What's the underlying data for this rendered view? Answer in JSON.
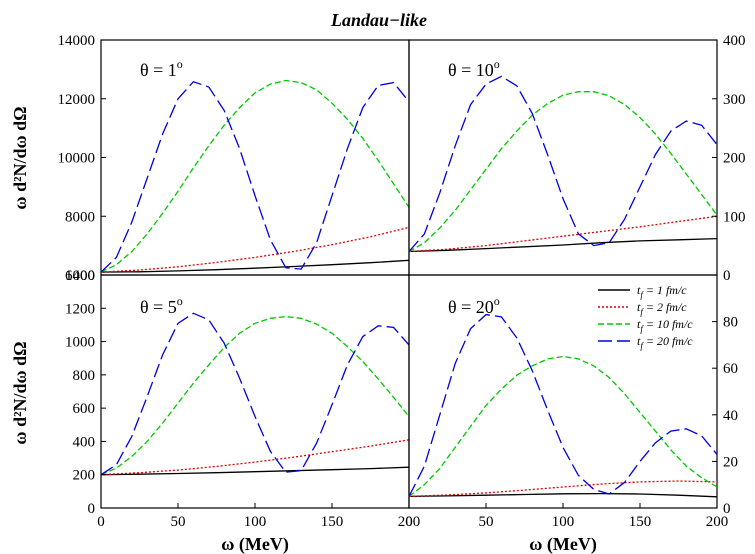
{
  "title": "Landau−like",
  "xlabel": "ω (MeV)",
  "ylabel": "ω d²N/dω dΩ",
  "legend": {
    "placement": "upper-right of bottom-right panel",
    "entries": [
      {
        "sub": "f",
        "text": "=   1 fm/c",
        "color": "#000000",
        "dash": "solid"
      },
      {
        "sub": "f",
        "text": "=   2 fm/c",
        "color": "#e00000",
        "dash": "dotted"
      },
      {
        "sub": "f",
        "text": "= 10 fm/c",
        "color": "#00c800",
        "dash": "dashed"
      },
      {
        "sub": "f",
        "text": "= 20 fm/c",
        "color": "#0000e0",
        "dash": "longdash"
      }
    ]
  },
  "chart_data": [
    {
      "type": "line",
      "panel": "top-left",
      "label_theta": "θ = 1",
      "label_sup": "o",
      "xlim": [
        0,
        200
      ],
      "ylim": [
        6000,
        14000
      ],
      "yticks": [
        6000,
        8000,
        10000,
        12000,
        14000
      ],
      "ytick_side": "left",
      "series": [
        {
          "name": "t_f = 1 fm/c",
          "x": [
            0,
            25,
            50,
            75,
            100,
            125,
            150,
            175,
            200
          ],
          "y": [
            6100,
            6110,
            6140,
            6180,
            6230,
            6290,
            6350,
            6420,
            6500
          ]
        },
        {
          "name": "t_f = 2 fm/c",
          "x": [
            0,
            25,
            50,
            75,
            100,
            125,
            150,
            175,
            200
          ],
          "y": [
            6100,
            6170,
            6280,
            6430,
            6600,
            6800,
            7030,
            7300,
            7620
          ]
        },
        {
          "name": "t_f = 10 fm/c",
          "x": [
            0,
            10,
            20,
            30,
            40,
            50,
            60,
            70,
            80,
            90,
            100,
            110,
            120,
            130,
            140,
            150,
            160,
            170,
            180,
            190,
            200
          ],
          "y": [
            6100,
            6350,
            6800,
            7400,
            8100,
            8850,
            9650,
            10400,
            11100,
            11700,
            12200,
            12500,
            12620,
            12550,
            12300,
            11850,
            11300,
            10650,
            9900,
            9100,
            8300
          ]
        },
        {
          "name": "t_f = 20 fm/c",
          "x": [
            0,
            10,
            20,
            30,
            40,
            50,
            60,
            70,
            80,
            90,
            100,
            110,
            120,
            130,
            140,
            150,
            160,
            170,
            180,
            190,
            200
          ],
          "y": [
            6100,
            6600,
            7800,
            9300,
            10800,
            12000,
            12580,
            12400,
            11600,
            10300,
            8700,
            7200,
            6250,
            6200,
            7100,
            8700,
            10300,
            11700,
            12450,
            12550,
            11900
          ]
        }
      ]
    },
    {
      "type": "line",
      "panel": "top-right",
      "label_theta": "θ = 10",
      "label_sup": "o",
      "xlim": [
        0,
        200
      ],
      "ylim": [
        0,
        400
      ],
      "yticks": [
        0,
        100,
        200,
        300,
        400
      ],
      "ytick_side": "right",
      "series": [
        {
          "name": "t_f = 1 fm/c",
          "x": [
            0,
            25,
            50,
            75,
            100,
            125,
            150,
            175,
            200
          ],
          "y": [
            40,
            42,
            45,
            48,
            51,
            55,
            58,
            60,
            62
          ]
        },
        {
          "name": "t_f = 2 fm/c",
          "x": [
            0,
            25,
            50,
            75,
            100,
            125,
            150,
            175,
            200
          ],
          "y": [
            40,
            44,
            50,
            58,
            66,
            74,
            82,
            91,
            100
          ]
        },
        {
          "name": "t_f = 10 fm/c",
          "x": [
            0,
            10,
            20,
            30,
            40,
            50,
            60,
            70,
            80,
            90,
            100,
            110,
            120,
            130,
            140,
            150,
            160,
            170,
            180,
            190,
            200
          ],
          "y": [
            40,
            55,
            80,
            110,
            145,
            180,
            215,
            245,
            272,
            292,
            306,
            312,
            312,
            305,
            290,
            268,
            240,
            207,
            172,
            137,
            102
          ]
        },
        {
          "name": "t_f = 20 fm/c",
          "x": [
            0,
            10,
            20,
            30,
            40,
            50,
            60,
            70,
            80,
            90,
            100,
            110,
            120,
            130,
            140,
            150,
            160,
            170,
            180,
            190,
            200
          ],
          "y": [
            40,
            70,
            140,
            220,
            290,
            325,
            338,
            322,
            275,
            205,
            130,
            70,
            50,
            55,
            95,
            150,
            205,
            245,
            262,
            255,
            222
          ]
        }
      ]
    },
    {
      "type": "line",
      "panel": "bottom-left",
      "label_theta": "θ = 5",
      "label_sup": "o",
      "xlim": [
        0,
        200
      ],
      "ylim": [
        0,
        1400
      ],
      "yticks": [
        0,
        200,
        400,
        600,
        800,
        1000,
        1200,
        1400
      ],
      "xticks": [
        0,
        50,
        100,
        150,
        200
      ],
      "ytick_side": "left",
      "series": [
        {
          "name": "t_f = 1 fm/c",
          "x": [
            0,
            25,
            50,
            75,
            100,
            125,
            150,
            175,
            200
          ],
          "y": [
            200,
            203,
            207,
            212,
            218,
            224,
            230,
            237,
            245
          ]
        },
        {
          "name": "t_f = 2 fm/c",
          "x": [
            0,
            25,
            50,
            75,
            100,
            125,
            150,
            175,
            200
          ],
          "y": [
            200,
            212,
            228,
            250,
            276,
            305,
            338,
            372,
            410
          ]
        },
        {
          "name": "t_f = 10 fm/c",
          "x": [
            0,
            10,
            20,
            30,
            40,
            50,
            60,
            70,
            80,
            90,
            100,
            110,
            120,
            130,
            140,
            150,
            160,
            170,
            180,
            190,
            200
          ],
          "y": [
            200,
            240,
            310,
            400,
            510,
            630,
            750,
            860,
            965,
            1050,
            1110,
            1140,
            1150,
            1140,
            1105,
            1050,
            970,
            880,
            775,
            665,
            550
          ]
        },
        {
          "name": "t_f = 20 fm/c",
          "x": [
            0,
            10,
            20,
            30,
            40,
            50,
            60,
            70,
            80,
            90,
            100,
            110,
            120,
            130,
            140,
            150,
            160,
            170,
            180,
            190,
            200
          ],
          "y": [
            200,
            260,
            430,
            670,
            920,
            1110,
            1170,
            1130,
            990,
            780,
            550,
            340,
            215,
            225,
            390,
            620,
            860,
            1030,
            1095,
            1085,
            980
          ]
        }
      ]
    },
    {
      "type": "line",
      "panel": "bottom-right",
      "label_theta": "θ = 20",
      "label_sup": "o",
      "xlim": [
        0,
        200
      ],
      "ylim": [
        0,
        100
      ],
      "yticks": [
        0,
        20,
        40,
        60,
        80
      ],
      "xticks": [
        0,
        50,
        100,
        150,
        200
      ],
      "ytick_side": "right",
      "series": [
        {
          "name": "t_f = 1 fm/c",
          "x": [
            0,
            25,
            50,
            75,
            100,
            125,
            150,
            175,
            200
          ],
          "y": [
            5,
            5.2,
            5.5,
            5.8,
            6.1,
            6.2,
            6.0,
            5.5,
            4.8
          ]
        },
        {
          "name": "t_f = 2 fm/c",
          "x": [
            0,
            25,
            50,
            75,
            100,
            125,
            150,
            175,
            200
          ],
          "y": [
            5,
            5.6,
            6.5,
            7.7,
            9.0,
            10.3,
            11.2,
            11.6,
            11.2
          ]
        },
        {
          "name": "t_f = 10 fm/c",
          "x": [
            0,
            10,
            20,
            30,
            40,
            50,
            60,
            70,
            80,
            90,
            100,
            110,
            120,
            130,
            140,
            150,
            160,
            170,
            180,
            190,
            200
          ],
          "y": [
            5,
            10,
            17,
            26,
            35,
            44,
            51,
            57,
            61,
            64,
            65,
            64,
            61,
            56,
            49,
            41,
            33,
            25,
            18,
            13,
            9
          ]
        },
        {
          "name": "t_f = 20 fm/c",
          "x": [
            0,
            10,
            20,
            30,
            40,
            50,
            60,
            70,
            80,
            90,
            100,
            110,
            120,
            130,
            140,
            150,
            160,
            170,
            180,
            190,
            200
          ],
          "y": [
            5,
            18,
            40,
            62,
            77,
            83,
            82,
            73,
            59,
            42,
            26,
            14,
            8,
            6,
            11,
            20,
            28,
            33,
            34,
            31,
            23
          ]
        }
      ]
    }
  ]
}
